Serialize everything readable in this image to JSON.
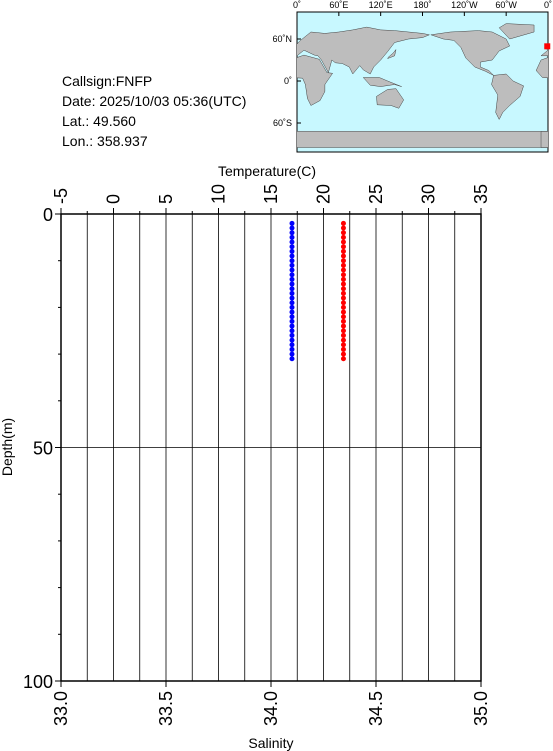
{
  "info": [
    "Callsign:FNFP",
    "Date:  2025/10/03 05:36(UTC)",
    "Lat.:  49.560",
    "Lon.:  358.937"
  ],
  "map": {
    "lon_labels": [
      "0˚",
      "60˚E",
      "120˚E",
      "180˚",
      "120˚W",
      "60˚W",
      "0˚"
    ],
    "lat_labels": [
      "60˚N",
      "0˚",
      "60˚S"
    ],
    "marker": {
      "lon": 358.937,
      "lat": 49.56,
      "color": "#ff0000"
    }
  },
  "chart_data": {
    "type": "profile",
    "ylabel": "Depth(m)",
    "ylim": [
      0,
      100
    ],
    "yticks": [
      0,
      50,
      100
    ],
    "yminor": [
      10,
      20,
      30,
      40,
      60,
      70,
      80,
      90
    ],
    "x_top": {
      "label": "Temperature(C)",
      "lim": [
        -5,
        35
      ],
      "ticks": [
        -5,
        0,
        5,
        10,
        15,
        20,
        25,
        30,
        35
      ],
      "minor": [
        -2.5,
        2.5,
        7.5,
        12.5,
        17.5,
        22.5,
        27.5,
        32.5
      ]
    },
    "x_bottom": {
      "label": "Salinity",
      "lim": [
        33,
        35
      ],
      "ticks": [
        {
          "value": 33,
          "label": "33.0"
        },
        {
          "value": 33.5,
          "label": "33.5"
        },
        {
          "value": 34,
          "label": "34.0"
        },
        {
          "value": 34.5,
          "label": "34.5"
        },
        {
          "value": 35,
          "label": "35.0"
        }
      ]
    },
    "depth": [
      2,
      3,
      4,
      5,
      6,
      7,
      8,
      9,
      10,
      11,
      12,
      13,
      14,
      15,
      16,
      17,
      18,
      19,
      20,
      21,
      22,
      23,
      24,
      25,
      26,
      27,
      28,
      29,
      30,
      31
    ],
    "series": [
      {
        "axis": "top",
        "color": "#ff0000",
        "values": [
          21.9,
          21.9,
          21.9,
          21.9,
          21.9,
          21.9,
          21.9,
          21.9,
          21.9,
          21.9,
          21.9,
          21.9,
          21.9,
          21.9,
          21.9,
          21.9,
          21.9,
          21.9,
          21.9,
          21.9,
          21.9,
          21.9,
          21.9,
          21.9,
          21.9,
          21.9,
          21.9,
          21.9,
          21.9,
          21.9
        ]
      },
      {
        "axis": "bottom",
        "color": "#0000ff",
        "values": [
          34.1,
          34.1,
          34.1,
          34.1,
          34.1,
          34.1,
          34.1,
          34.1,
          34.1,
          34.1,
          34.1,
          34.1,
          34.1,
          34.1,
          34.1,
          34.1,
          34.1,
          34.1,
          34.1,
          34.1,
          34.1,
          34.1,
          34.1,
          34.1,
          34.1,
          34.1,
          34.1,
          34.1,
          34.1,
          34.1
        ]
      }
    ]
  }
}
